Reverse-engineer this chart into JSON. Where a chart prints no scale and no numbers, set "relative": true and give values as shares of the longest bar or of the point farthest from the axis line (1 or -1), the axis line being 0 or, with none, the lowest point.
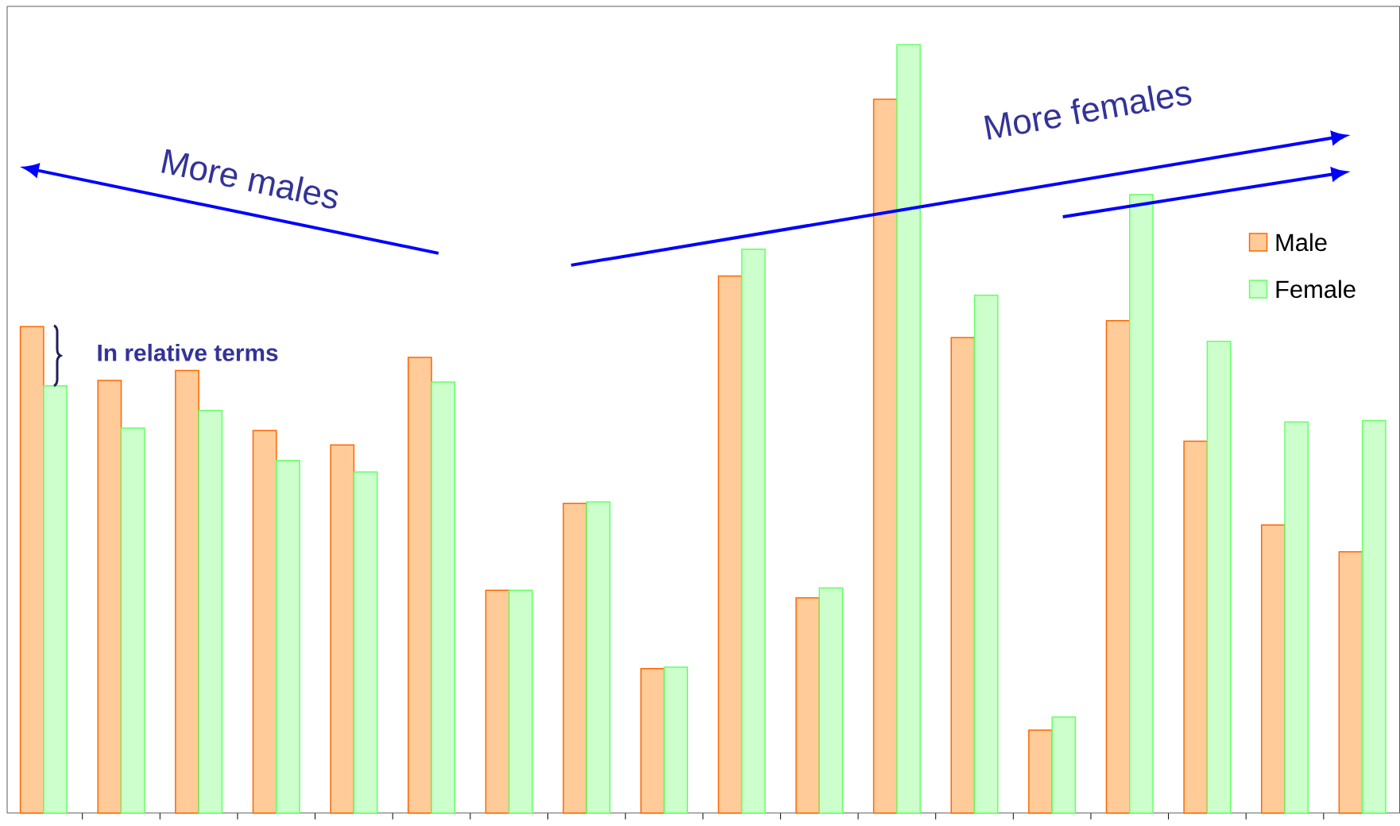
{
  "chart_data": {
    "type": "bar",
    "relative": true,
    "legend": "right",
    "categories": [
      null,
      null,
      null,
      null,
      null,
      null,
      null,
      null,
      null,
      null,
      null,
      null,
      null,
      null,
      null,
      null,
      null,
      null
    ],
    "series": [
      {
        "name": "Male",
        "color": "#ffcc99",
        "values": [
          0.633,
          0.563,
          0.576,
          0.498,
          0.479,
          0.593,
          0.29,
          0.403,
          0.188,
          0.699,
          0.28,
          0.929,
          0.619,
          0.108,
          0.641,
          0.484,
          0.375,
          0.34
        ]
      },
      {
        "name": "Female",
        "color": "#ccffcc",
        "values": [
          0.556,
          0.501,
          0.524,
          0.459,
          0.444,
          0.561,
          0.29,
          0.405,
          0.19,
          0.734,
          0.293,
          1.0,
          0.674,
          0.125,
          0.805,
          0.614,
          0.509,
          0.511
        ]
      }
    ],
    "annotations": [
      "More males",
      "More females",
      "In relative terms"
    ]
  }
}
